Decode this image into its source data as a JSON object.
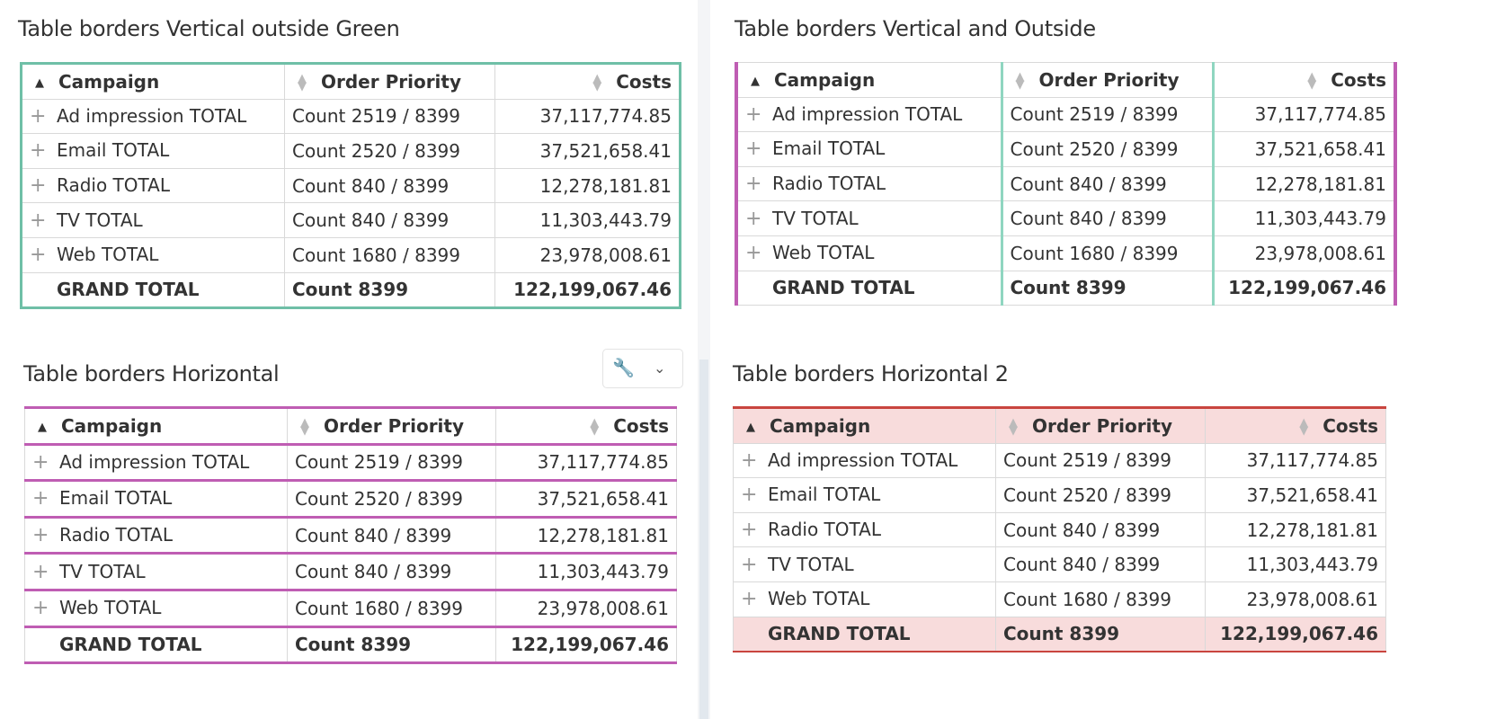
{
  "columns": [
    "Campaign",
    "Order Priority",
    "Costs"
  ],
  "rows": [
    [
      "Ad impression TOTAL",
      "Count 2519 / 8399",
      "37,117,774.85"
    ],
    [
      "Email TOTAL",
      "Count 2520 / 8399",
      "37,521,658.41"
    ],
    [
      "Radio TOTAL",
      "Count 840 / 8399",
      "12,278,181.81"
    ],
    [
      "TV TOTAL",
      "Count 840 / 8399",
      "11,303,443.79"
    ],
    [
      "Web TOTAL",
      "Count 1680 / 8399",
      "23,978,008.61"
    ]
  ],
  "grand_total": [
    "GRAND TOTAL",
    "Count 8399",
    "122,199,067.46"
  ],
  "panels": [
    {
      "title": "Table borders Vertical outside Green",
      "style": "t1"
    },
    {
      "title": "Table borders Vertical and Outside",
      "style": "t2"
    },
    {
      "title": "Table borders Horizontal",
      "style": "t3"
    },
    {
      "title": "Table borders Horizontal 2",
      "style": "t4"
    }
  ],
  "colors": {
    "green": "#6fbfa7",
    "light_green": "#8fd6c0",
    "magenta": "#bf5db3",
    "red": "#c9453f",
    "pink_fill": "#f8dcdc"
  },
  "icons": {
    "sort_active": "triangle-up",
    "sort_inactive": "up-down-arrows",
    "expand": "plus",
    "tool": "wrench",
    "dropdown": "chevron-down"
  }
}
